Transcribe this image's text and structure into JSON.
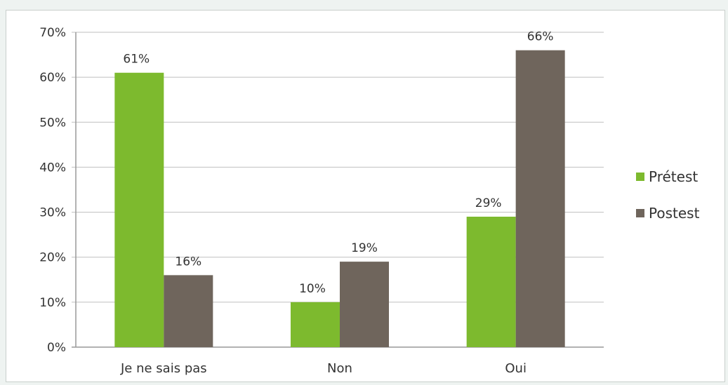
{
  "chart_data": {
    "type": "bar",
    "categories": [
      "Je ne sais pas",
      "Non",
      "Oui"
    ],
    "series": [
      {
        "name": "Prétest",
        "values": [
          61,
          10,
          29
        ],
        "labels": [
          "61%",
          "10%",
          "29%"
        ],
        "color": "#7dba2e"
      },
      {
        "name": "Postest",
        "values": [
          16,
          19,
          66
        ],
        "labels": [
          "16%",
          "19%",
          "66%"
        ],
        "color": "#6f655c"
      }
    ],
    "y_ticks": [
      "0%",
      "10%",
      "20%",
      "30%",
      "40%",
      "50%",
      "60%",
      "70%"
    ],
    "ylim": [
      0,
      70
    ],
    "grid": true,
    "legend_position": "right",
    "gridline_color": "#bfbfbf",
    "axis_color": "#999999"
  }
}
